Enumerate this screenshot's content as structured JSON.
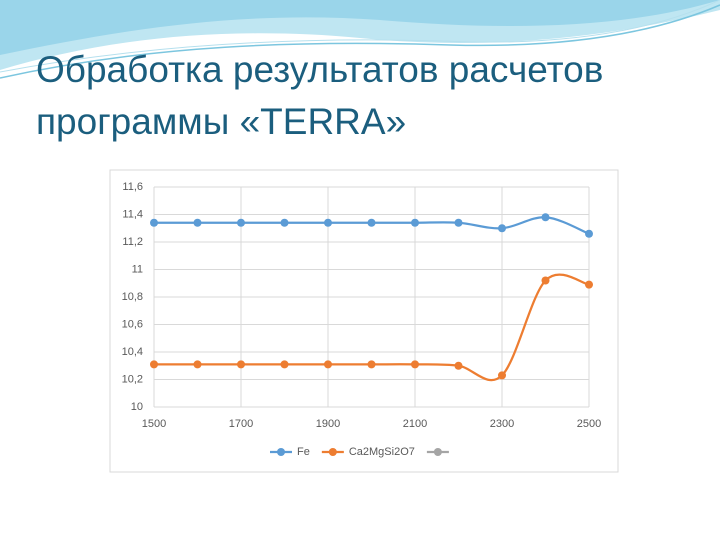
{
  "slide_title": "Обработка результатов расчетов программы «TERRA»",
  "chart_data": {
    "type": "line",
    "smooth": true,
    "grid": true,
    "x": [
      1500,
      1600,
      1700,
      1800,
      1900,
      2000,
      2100,
      2200,
      2300,
      2400,
      2500
    ],
    "xlim": [
      1500,
      2500
    ],
    "xticks": [
      1500,
      1700,
      1900,
      2100,
      2300,
      2500
    ],
    "ylim": [
      10,
      11.6
    ],
    "yticks": [
      10,
      {
        "value": 10.2,
        "label": "10,2"
      },
      {
        "value": 10.4,
        "label": "10,4"
      },
      {
        "value": 10.6,
        "label": "10,6"
      },
      {
        "value": 10.8,
        "label": "10,8"
      },
      11,
      {
        "value": 11.2,
        "label": "11,2"
      },
      {
        "value": 11.4,
        "label": "11,4"
      },
      {
        "value": 11.6,
        "label": "11,6"
      }
    ],
    "series": [
      {
        "name": "Fe",
        "color": "#5b9bd5",
        "values": [
          11.34,
          11.34,
          11.34,
          11.34,
          11.34,
          11.34,
          11.34,
          11.34,
          11.3,
          11.38,
          11.26
        ]
      },
      {
        "name": "Ca2MgSi2O7",
        "color": "#ed7d31",
        "values": [
          10.31,
          10.31,
          10.31,
          10.31,
          10.31,
          10.31,
          10.31,
          10.3,
          10.23,
          10.92,
          10.89
        ]
      },
      {
        "color": "#a5a5a5",
        "values": [
          null,
          null,
          null,
          null,
          null,
          null,
          null,
          null,
          null,
          null,
          null
        ]
      }
    ]
  }
}
